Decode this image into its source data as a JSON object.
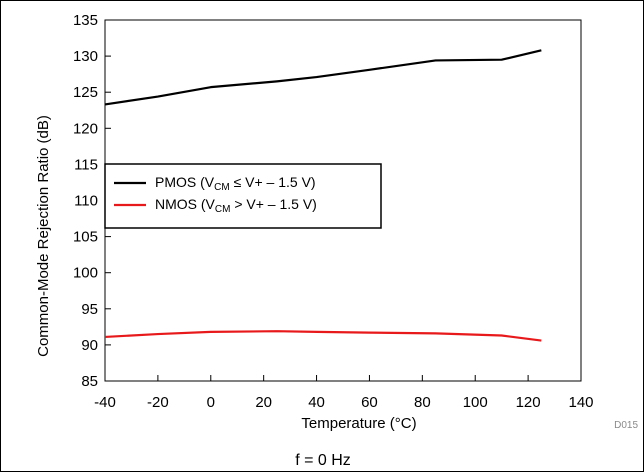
{
  "chart_data": {
    "type": "line",
    "title": "",
    "xlabel": "Temperature (°C)",
    "ylabel": "Common-Mode Rejection Ratio (dB)",
    "xlim": [
      -40,
      140
    ],
    "ylim": [
      85,
      135
    ],
    "xticks": [
      "-40",
      "-20",
      "0",
      "20",
      "40",
      "60",
      "80",
      "100",
      "120",
      "140"
    ],
    "yticks": [
      "85",
      "90",
      "95",
      "100",
      "105",
      "110",
      "115",
      "120",
      "125",
      "130",
      "135"
    ],
    "grid": false,
    "legend_position": "center-left",
    "series": [
      {
        "name": "PMOS (VCM ≤ V+ – 1.5 V)",
        "legend_main": "PMOS (V",
        "legend_sub": "CM",
        "legend_rest": " ≤ V+ – 1.5 V)",
        "color": "#000000",
        "x": [
          -40,
          -20,
          0,
          25,
          40,
          60,
          85,
          110,
          125
        ],
        "y": [
          123.3,
          124.4,
          125.7,
          126.5,
          127.1,
          128.1,
          129.4,
          129.5,
          130.8
        ]
      },
      {
        "name": "NMOS (VCM > V+ – 1.5 V)",
        "legend_main": "NMOS (V",
        "legend_sub": "CM",
        "legend_rest": " > V+ – 1.5 V)",
        "color": "#e8191b",
        "x": [
          -40,
          -20,
          0,
          25,
          40,
          60,
          85,
          110,
          125
        ],
        "y": [
          91.1,
          91.5,
          91.8,
          91.9,
          91.8,
          91.7,
          91.6,
          91.3,
          90.6
        ]
      }
    ],
    "doc_id": "D015",
    "caption": "f = 0 Hz"
  }
}
